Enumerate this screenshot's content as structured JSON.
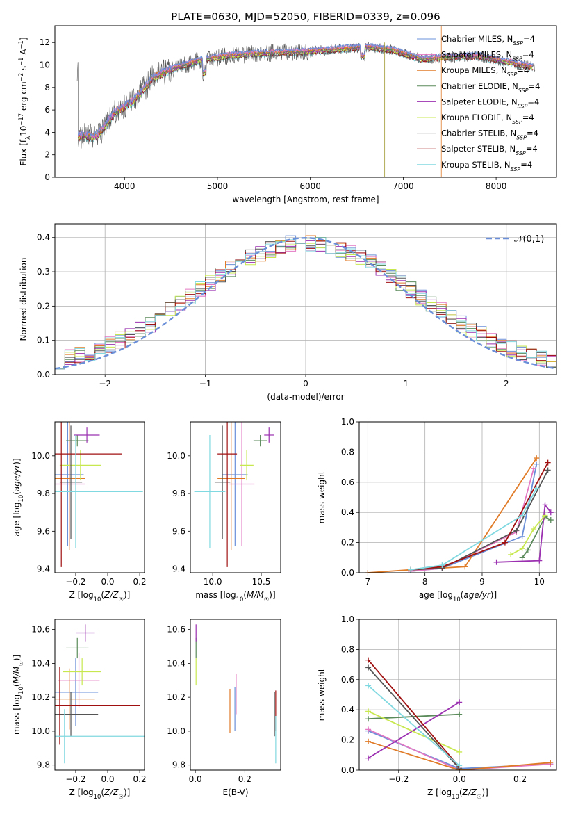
{
  "figure_title": "PLATE=0630, MJD=52050, FIBERID=0339, z=0.096",
  "colors": {
    "Chabrier MILES": "#6a8fd8",
    "Salpeter MILES": "#e377c2",
    "Kroupa MILES": "#e07b28",
    "Chabrier ELODIE": "#5a8a5a",
    "Salpeter ELODIE": "#9b30b0",
    "Kroupa ELODIE": "#c8e850",
    "Chabrier STELIB": "#555555",
    "Salpeter STELIB": "#a01010",
    "Kroupa STELIB": "#80d8e0"
  },
  "chart_data": [
    {
      "id": "spectrum",
      "type": "line",
      "xlabel": "wavelength [Angstrom, rest frame]",
      "ylabel": "Flux [f_λ 10^-17 erg cm^-2 s^-1 A^-1]",
      "xlim": [
        3250,
        8650
      ],
      "ylim": [
        0,
        13.5
      ],
      "xticks": [
        4000,
        5000,
        6000,
        7000,
        8000
      ],
      "yticks": [
        0,
        2,
        4,
        6,
        8,
        10,
        12
      ],
      "legend": [
        "Chabrier MILES, N_SSP=4",
        "Salpeter MILES, N_SSP=4",
        "Kroupa MILES, N_SSP=4",
        "Chabrier ELODIE, N_SSP=4",
        "Salpeter ELODIE, N_SSP=4",
        "Kroupa ELODIE, N_SSP=4",
        "Chabrier STELIB, N_SSP=4",
        "Salpeter STELIB, N_SSP=4",
        "Kroupa STELIB, N_SSP=4"
      ],
      "legend_position": "top-right",
      "continuum": {
        "x": [
          3500,
          3700,
          3900,
          4100,
          4300,
          4500,
          4800,
          5100,
          5400,
          5700,
          6000,
          6300,
          6600,
          6900,
          7200,
          7500,
          7800,
          8100,
          8400
        ],
        "y": [
          3.7,
          3.6,
          5.8,
          6.8,
          8.8,
          9.6,
          10.4,
          10.8,
          11.0,
          11.1,
          11.2,
          11.4,
          11.6,
          11.3,
          10.5,
          10.7,
          10.8,
          10.3,
          9.8
        ]
      }
    },
    {
      "id": "residuals",
      "type": "line",
      "xlabel": "(data-model)/error",
      "ylabel": "Normed distribution",
      "xlim": [
        -2.5,
        2.5
      ],
      "ylim": [
        0,
        0.44
      ],
      "xticks": [
        -2,
        -1,
        0,
        1,
        2
      ],
      "yticks": [
        0.0,
        0.1,
        0.2,
        0.3,
        0.4
      ],
      "legend": [
        "N(0,1)"
      ],
      "legend_position": "top-right",
      "grid": true
    },
    {
      "id": "age_vs_Z",
      "type": "scatter",
      "xlabel": "Z [log10(Z/Z☉)]",
      "ylabel": "age  [log10(age/yr)]",
      "xlim": [
        -0.33,
        0.23
      ],
      "ylim": [
        9.38,
        10.18
      ],
      "xticks": [
        -0.2,
        0.0,
        0.2
      ],
      "yticks": [
        9.4,
        9.6,
        9.8,
        10.0
      ],
      "points": [
        {
          "name": "Chabrier MILES",
          "x": -0.25,
          "xerr": 0.1,
          "y": 9.9,
          "yerr": 0.38
        },
        {
          "name": "Salpeter MILES",
          "x": -0.24,
          "xerr": 0.1,
          "y": 9.85,
          "yerr": 0.33
        },
        {
          "name": "Kroupa MILES",
          "x": -0.24,
          "xerr": 0.1,
          "y": 9.88,
          "yerr": 0.38
        },
        {
          "name": "Chabrier ELODIE",
          "x": -0.19,
          "xerr": 0.07,
          "y": 10.08,
          "yerr": 0.03
        },
        {
          "name": "Salpeter ELODIE",
          "x": -0.13,
          "xerr": 0.08,
          "y": 10.11,
          "yerr": 0.04
        },
        {
          "name": "Kroupa ELODIE",
          "x": -0.17,
          "xerr": 0.13,
          "y": 9.95,
          "yerr": 0.08
        },
        {
          "name": "Chabrier STELIB",
          "x": -0.23,
          "xerr": 0.07,
          "y": 9.86,
          "yerr": 0.3
        },
        {
          "name": "Salpeter STELIB",
          "x": -0.29,
          "xerr": 0.38,
          "y": 10.01,
          "yerr": 0.6
        },
        {
          "name": "Kroupa STELIB",
          "x": -0.2,
          "xerr": 0.42,
          "y": 9.81,
          "yerr": 0.3
        }
      ]
    },
    {
      "id": "age_vs_mass",
      "type": "scatter",
      "xlabel": "mass [log10(M/M☉)]",
      "ylabel": "",
      "xlim": [
        9.77,
        10.7
      ],
      "ylim": [
        9.38,
        10.18
      ],
      "xticks": [
        10.0,
        10.5
      ],
      "yticks": [
        9.4,
        9.6,
        9.8,
        10.0
      ],
      "points": [
        {
          "name": "Chabrier MILES",
          "x": 10.23,
          "xerr": 0.13,
          "y": 9.9,
          "yerr": 0.38
        },
        {
          "name": "Salpeter MILES",
          "x": 10.3,
          "xerr": 0.13,
          "y": 9.85,
          "yerr": 0.33
        },
        {
          "name": "Kroupa MILES",
          "x": 10.19,
          "xerr": 0.14,
          "y": 9.88,
          "yerr": 0.38
        },
        {
          "name": "Chabrier ELODIE",
          "x": 10.49,
          "xerr": 0.07,
          "y": 10.08,
          "yerr": 0.03
        },
        {
          "name": "Salpeter ELODIE",
          "x": 10.58,
          "xerr": 0.05,
          "y": 10.11,
          "yerr": 0.04
        },
        {
          "name": "Kroupa ELODIE",
          "x": 10.35,
          "xerr": 0.07,
          "y": 9.95,
          "yerr": 0.08
        },
        {
          "name": "Chabrier STELIB",
          "x": 10.1,
          "xerr": 0.08,
          "y": 9.86,
          "yerr": 0.3
        },
        {
          "name": "Salpeter STELIB",
          "x": 10.15,
          "xerr": 0.1,
          "y": 10.01,
          "yerr": 0.6
        },
        {
          "name": "Kroupa STELIB",
          "x": 9.97,
          "xerr": 0.16,
          "y": 9.81,
          "yerr": 0.3
        }
      ]
    },
    {
      "id": "massweight_vs_age",
      "type": "line",
      "xlabel": "age  [log10(age/yr)]",
      "ylabel": "mass weight",
      "xlim": [
        6.85,
        10.3
      ],
      "ylim": [
        0,
        1.0
      ],
      "xticks": [
        7,
        8,
        9,
        10
      ],
      "yticks": [
        0.0,
        0.2,
        0.4,
        0.6,
        0.8,
        1.0
      ],
      "grid": true,
      "series": [
        {
          "name": "Chabrier MILES",
          "x": [
            7.75,
            8.3,
            9.7,
            9.95
          ],
          "y": [
            0.01,
            0.03,
            0.24,
            0.72
          ]
        },
        {
          "name": "Salpeter MILES",
          "x": [
            7.75,
            8.3,
            9.6,
            9.9
          ],
          "y": [
            0.01,
            0.03,
            0.27,
            0.69
          ]
        },
        {
          "name": "Kroupa MILES",
          "x": [
            7.0,
            7.75,
            8.7,
            9.95
          ],
          "y": [
            0.0,
            0.02,
            0.04,
            0.76
          ]
        },
        {
          "name": "Chabrier ELODIE",
          "x": [
            9.7,
            9.8,
            10.1,
            10.2
          ],
          "y": [
            0.1,
            0.15,
            0.37,
            0.35
          ]
        },
        {
          "name": "Salpeter ELODIE",
          "x": [
            9.25,
            10.0,
            10.1,
            10.2
          ],
          "y": [
            0.07,
            0.08,
            0.45,
            0.4
          ]
        },
        {
          "name": "Kroupa ELODIE",
          "x": [
            9.5,
            9.7,
            9.9,
            10.1
          ],
          "y": [
            0.12,
            0.16,
            0.29,
            0.38
          ]
        },
        {
          "name": "Chabrier STELIB",
          "x": [
            7.75,
            8.3,
            9.6,
            10.15
          ],
          "y": [
            0.02,
            0.03,
            0.28,
            0.68
          ]
        },
        {
          "name": "Salpeter STELIB",
          "x": [
            7.75,
            8.3,
            9.4,
            10.15
          ],
          "y": [
            0.02,
            0.04,
            0.2,
            0.73
          ]
        },
        {
          "name": "Kroupa STELIB",
          "x": [
            7.75,
            8.3,
            9.7,
            9.95
          ],
          "y": [
            0.02,
            0.05,
            0.38,
            0.56
          ]
        }
      ]
    },
    {
      "id": "mass_vs_Z",
      "type": "scatter",
      "xlabel": "Z [log10(Z/Z☉)]",
      "ylabel": "mass [log10(M/M☉)]",
      "xlim": [
        -0.33,
        0.23
      ],
      "ylim": [
        9.77,
        10.66
      ],
      "xticks": [
        -0.2,
        0.0,
        0.2
      ],
      "yticks": [
        9.8,
        10.0,
        10.2,
        10.4,
        10.6
      ],
      "points": [
        {
          "name": "Chabrier MILES",
          "x": -0.2,
          "xerr": 0.14,
          "y": 10.23,
          "yerr": 0.2
        },
        {
          "name": "Salpeter MILES",
          "x": -0.18,
          "xerr": 0.13,
          "y": 10.3,
          "yerr": 0.16
        },
        {
          "name": "Kroupa MILES",
          "x": -0.24,
          "xerr": 0.16,
          "y": 10.19,
          "yerr": 0.18
        },
        {
          "name": "Chabrier ELODIE",
          "x": -0.19,
          "xerr": 0.07,
          "y": 10.49,
          "yerr": 0.06
        },
        {
          "name": "Salpeter ELODIE",
          "x": -0.14,
          "xerr": 0.06,
          "y": 10.58,
          "yerr": 0.05
        },
        {
          "name": "Kroupa ELODIE",
          "x": -0.16,
          "xerr": 0.12,
          "y": 10.35,
          "yerr": 0.08
        },
        {
          "name": "Chabrier STELIB",
          "x": -0.23,
          "xerr": 0.17,
          "y": 10.1,
          "yerr": 0.13
        },
        {
          "name": "Salpeter STELIB",
          "x": -0.3,
          "xerr": 0.5,
          "y": 10.15,
          "yerr": 0.23
        },
        {
          "name": "Kroupa STELIB",
          "x": -0.27,
          "xerr": 0.5,
          "y": 9.97,
          "yerr": 0.16
        }
      ]
    },
    {
      "id": "mass_vs_EBV",
      "type": "scatter",
      "xlabel": "E(B-V)",
      "ylabel": "",
      "xlim": [
        -0.02,
        0.345
      ],
      "ylim": [
        9.77,
        10.66
      ],
      "xticks": [
        0.0,
        0.2
      ],
      "yticks": [
        9.8,
        10.0,
        10.2,
        10.4,
        10.6
      ],
      "points": [
        {
          "name": "Chabrier MILES",
          "x": 0.16,
          "y": 10.13,
          "yerr": 0.13
        },
        {
          "name": "Salpeter MILES",
          "x": 0.165,
          "y": 10.22,
          "yerr": 0.12
        },
        {
          "name": "Kroupa MILES",
          "x": 0.14,
          "y": 10.12,
          "yerr": 0.13
        },
        {
          "name": "Chabrier ELODIE",
          "x": 0.003,
          "y": 10.49,
          "yerr": 0.06
        },
        {
          "name": "Salpeter ELODIE",
          "x": 0.003,
          "y": 10.58,
          "yerr": 0.05
        },
        {
          "name": "Kroupa ELODIE",
          "x": 0.003,
          "y": 10.35,
          "yerr": 0.08
        },
        {
          "name": "Chabrier STELIB",
          "x": 0.32,
          "y": 10.1,
          "yerr": 0.13
        },
        {
          "name": "Salpeter STELIB",
          "x": 0.325,
          "y": 10.12,
          "yerr": 0.12
        },
        {
          "name": "Kroupa STELIB",
          "x": 0.325,
          "y": 9.95,
          "yerr": 0.14
        }
      ]
    },
    {
      "id": "massweight_vs_Z",
      "type": "line",
      "xlabel": "Z [log10(Z/Z☉)]",
      "ylabel": "mass weight",
      "xlim": [
        -0.33,
        0.32
      ],
      "ylim": [
        0,
        1.0
      ],
      "xticks": [
        -0.2,
        0.0,
        0.2
      ],
      "yticks": [
        0.0,
        0.2,
        0.4,
        0.6,
        0.8,
        1.0
      ],
      "grid": true,
      "series": [
        {
          "name": "Chabrier MILES",
          "x": [
            -0.3,
            0.0,
            0.3
          ],
          "y": [
            0.26,
            0.01,
            0.04
          ]
        },
        {
          "name": "Salpeter MILES",
          "x": [
            -0.3,
            0.0,
            0.3
          ],
          "y": [
            0.27,
            0.0,
            0.04
          ]
        },
        {
          "name": "Kroupa MILES",
          "x": [
            -0.3,
            0.0,
            0.3
          ],
          "y": [
            0.19,
            0.0,
            0.05
          ]
        },
        {
          "name": "Chabrier ELODIE",
          "x": [
            -0.3,
            0.0
          ],
          "y": [
            0.34,
            0.37
          ]
        },
        {
          "name": "Salpeter ELODIE",
          "x": [
            -0.3,
            0.0
          ],
          "y": [
            0.08,
            0.45
          ]
        },
        {
          "name": "Kroupa ELODIE",
          "x": [
            -0.3,
            0.0
          ],
          "y": [
            0.39,
            0.12
          ]
        },
        {
          "name": "Chabrier STELIB",
          "x": [
            -0.3,
            0.0
          ],
          "y": [
            0.68,
            0.01
          ]
        },
        {
          "name": "Salpeter STELIB",
          "x": [
            -0.3,
            0.0
          ],
          "y": [
            0.73,
            0.02
          ]
        },
        {
          "name": "Kroupa STELIB",
          "x": [
            -0.3,
            0.0
          ],
          "y": [
            0.56,
            0.03
          ]
        }
      ]
    }
  ]
}
